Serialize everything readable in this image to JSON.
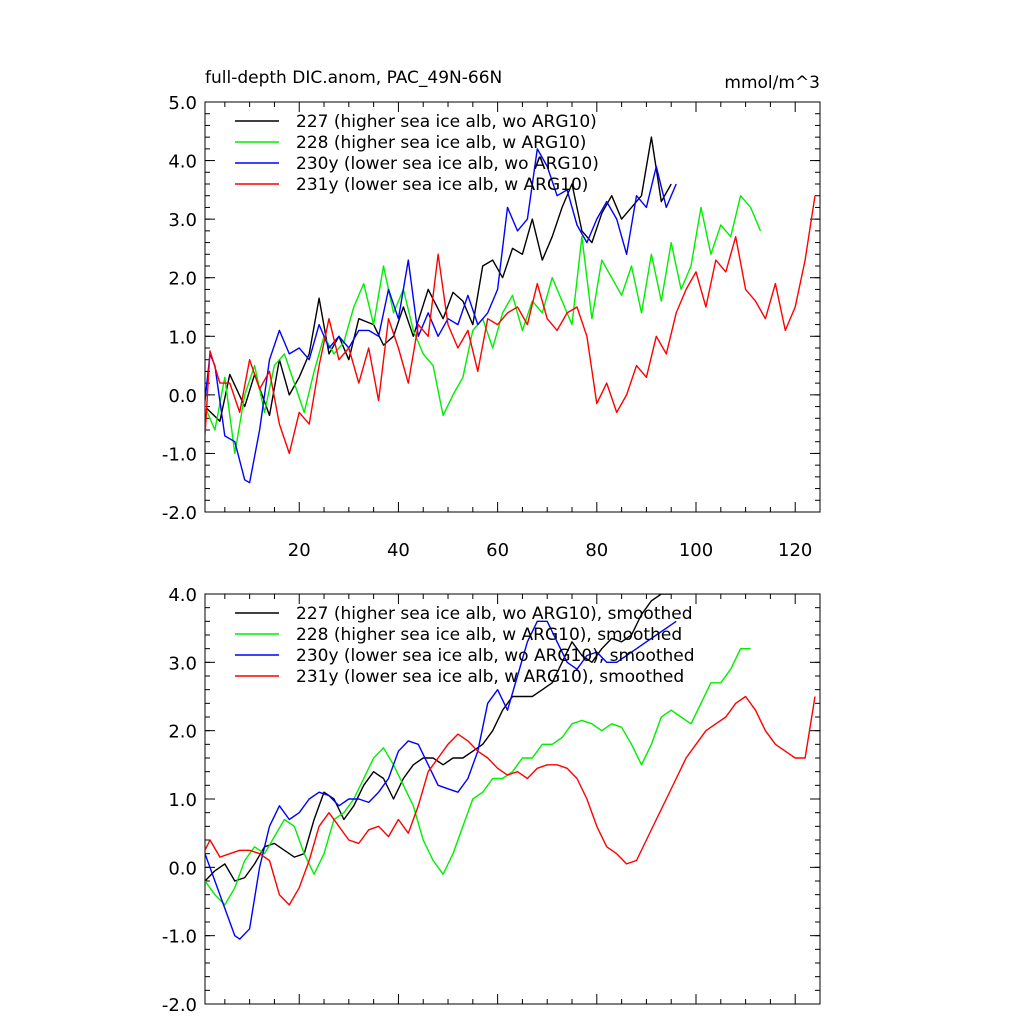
{
  "chart_data": [
    {
      "type": "line",
      "title": "full-depth DIC.anom, PAC_49N-66N",
      "units": "mmol/m^3",
      "xlabel": "",
      "ylabel": "",
      "xlim": [
        1,
        125
      ],
      "ylim": [
        -2.0,
        5.0
      ],
      "xticks": [
        20,
        40,
        60,
        80,
        100,
        120
      ],
      "xtick_labels": [
        "20",
        "40",
        "60",
        "80",
        "100",
        "120"
      ],
      "yticks": [
        -2.0,
        -1.0,
        0.0,
        1.0,
        2.0,
        3.0,
        4.0,
        5.0
      ],
      "ytick_labels": [
        "-2.0",
        "-1.0",
        "0.0",
        "1.0",
        "2.0",
        "3.0",
        "4.0",
        "5.0"
      ],
      "legend_position": "top-left",
      "series": [
        {
          "name": "227 (higher sea ice alb, wo ARG10)",
          "color": "#000000",
          "x": [
            1,
            4,
            6,
            9,
            11,
            14,
            16,
            18,
            20,
            22,
            24,
            26,
            28,
            30,
            32,
            35,
            37,
            39,
            41,
            43,
            46,
            49,
            51,
            53,
            55,
            57,
            59,
            61,
            63,
            65,
            67,
            69,
            71,
            73,
            75,
            77,
            79,
            81,
            83,
            85,
            87,
            89,
            91,
            93,
            95
          ],
          "y": [
            -0.2,
            -0.45,
            0.35,
            -0.2,
            0.35,
            -0.35,
            0.6,
            0.0,
            0.3,
            0.7,
            1.65,
            0.7,
            1.0,
            0.6,
            1.3,
            1.2,
            0.85,
            1.0,
            1.5,
            1.0,
            1.8,
            1.3,
            1.75,
            1.6,
            1.2,
            2.2,
            2.3,
            2.0,
            2.5,
            2.4,
            3.0,
            2.3,
            2.7,
            3.2,
            3.6,
            2.8,
            2.6,
            3.1,
            3.4,
            3.0,
            3.2,
            3.4,
            4.4,
            3.3,
            3.6
          ]
        },
        {
          "name": "228 (higher sea ice alb, w ARG10)",
          "color": "#00ee00",
          "x": [
            1,
            3,
            5,
            7,
            9,
            11,
            13,
            15,
            17,
            19,
            21,
            23,
            25,
            27,
            29,
            31,
            33,
            35,
            37,
            39,
            41,
            43,
            45,
            47,
            49,
            51,
            53,
            55,
            57,
            59,
            61,
            63,
            65,
            67,
            69,
            71,
            73,
            75,
            77,
            79,
            81,
            83,
            85,
            87,
            89,
            91,
            93,
            95,
            97,
            99,
            101,
            103,
            105,
            107,
            109,
            111,
            113
          ],
          "y": [
            -0.2,
            -0.6,
            0.3,
            -1.0,
            0.0,
            0.5,
            -0.3,
            0.5,
            0.7,
            0.2,
            -0.3,
            0.4,
            1.0,
            0.7,
            0.9,
            1.5,
            1.9,
            1.2,
            2.2,
            1.4,
            1.8,
            1.1,
            0.7,
            0.5,
            -0.35,
            0.0,
            0.3,
            1.1,
            1.3,
            0.8,
            1.4,
            1.7,
            1.1,
            1.6,
            1.4,
            2.0,
            1.6,
            1.2,
            2.7,
            1.3,
            2.3,
            2.0,
            1.7,
            2.2,
            1.4,
            2.4,
            1.6,
            2.6,
            1.8,
            2.2,
            3.2,
            2.4,
            2.9,
            2.7,
            3.4,
            3.2,
            2.8
          ]
        },
        {
          "name": "230y (lower sea ice alb, wo ARG10)",
          "color": "#0000ff",
          "x": [
            1,
            2,
            3,
            5,
            7,
            9,
            10,
            12,
            14,
            16,
            18,
            20,
            22,
            24,
            26,
            28,
            30,
            32,
            34,
            36,
            38,
            40,
            42,
            44,
            46,
            48,
            50,
            52,
            54,
            56,
            58,
            60,
            62,
            64,
            66,
            68,
            70,
            72,
            74,
            76,
            78,
            80,
            82,
            84,
            86,
            88,
            90,
            92,
            94,
            96
          ],
          "y": [
            -0.1,
            0.7,
            0.5,
            -0.7,
            -0.8,
            -1.45,
            -1.5,
            -0.6,
            0.6,
            1.1,
            0.7,
            0.8,
            0.6,
            1.2,
            0.8,
            1.0,
            0.8,
            1.1,
            1.1,
            1.0,
            1.8,
            1.3,
            2.3,
            1.0,
            1.4,
            1.0,
            1.3,
            1.2,
            1.7,
            1.2,
            1.4,
            1.8,
            3.2,
            2.8,
            3.0,
            4.2,
            3.9,
            3.4,
            3.5,
            2.9,
            2.6,
            3.0,
            3.3,
            3.0,
            2.4,
            3.4,
            3.2,
            3.9,
            3.2,
            3.6
          ]
        },
        {
          "name": "231y (lower sea ice alb, w ARG10)",
          "color": "#ff0000",
          "x": [
            1,
            2,
            4,
            6,
            8,
            10,
            12,
            14,
            16,
            18,
            20,
            22,
            24,
            26,
            28,
            30,
            32,
            34,
            36,
            38,
            40,
            42,
            44,
            46,
            48,
            50,
            52,
            54,
            56,
            58,
            60,
            62,
            64,
            66,
            68,
            70,
            72,
            74,
            76,
            78,
            80,
            82,
            84,
            86,
            88,
            90,
            92,
            94,
            96,
            98,
            100,
            102,
            104,
            106,
            108,
            110,
            112,
            114,
            116,
            118,
            120,
            122,
            124
          ],
          "y": [
            -0.7,
            0.75,
            0.2,
            0.2,
            -0.3,
            0.6,
            0.1,
            0.4,
            -0.5,
            -1.0,
            -0.3,
            -0.5,
            0.5,
            1.3,
            0.6,
            0.8,
            0.2,
            0.8,
            -0.1,
            1.3,
            0.8,
            0.2,
            1.2,
            1.0,
            2.4,
            1.2,
            0.8,
            1.1,
            0.4,
            1.3,
            1.2,
            1.4,
            1.5,
            1.2,
            1.9,
            1.3,
            1.1,
            1.4,
            1.5,
            1.0,
            -0.15,
            0.2,
            -0.3,
            0.0,
            0.5,
            0.3,
            1.0,
            0.7,
            1.4,
            1.8,
            2.1,
            1.5,
            2.3,
            2.1,
            2.7,
            1.8,
            1.6,
            1.3,
            1.9,
            1.1,
            1.5,
            2.3,
            3.4
          ]
        }
      ]
    },
    {
      "type": "line",
      "title": "",
      "xlabel": "",
      "ylabel": "",
      "xlim": [
        1,
        125
      ],
      "ylim": [
        -2.0,
        4.0
      ],
      "xticks": [
        20,
        40,
        60,
        80,
        100,
        120
      ],
      "xtick_labels": [],
      "yticks": [
        -2.0,
        -1.0,
        0.0,
        1.0,
        2.0,
        3.0,
        4.0
      ],
      "ytick_labels": [
        "-2.0",
        "-1.0",
        "0.0",
        "1.0",
        "2.0",
        "3.0",
        "4.0"
      ],
      "legend_position": "top-left",
      "series": [
        {
          "name": "227 (higher sea ice alb, wo ARG10), smoothed",
          "color": "#000000",
          "x": [
            1,
            3,
            5,
            7,
            9,
            11,
            13,
            15,
            17,
            19,
            21,
            23,
            25,
            27,
            29,
            31,
            33,
            35,
            37,
            39,
            41,
            43,
            45,
            47,
            49,
            51,
            53,
            55,
            57,
            59,
            61,
            63,
            65,
            67,
            69,
            71,
            73,
            75,
            77,
            79,
            81,
            83,
            85,
            87,
            89,
            91,
            93,
            95
          ],
          "y": [
            -0.2,
            -0.05,
            0.05,
            -0.2,
            -0.15,
            0.05,
            0.3,
            0.35,
            0.25,
            0.15,
            0.2,
            0.7,
            1.1,
            1.0,
            0.7,
            0.9,
            1.2,
            1.4,
            1.3,
            1.0,
            1.3,
            1.5,
            1.6,
            1.6,
            1.5,
            1.6,
            1.6,
            1.7,
            1.8,
            2.0,
            2.3,
            2.5,
            2.5,
            2.5,
            2.6,
            2.7,
            3.0,
            3.3,
            3.1,
            3.0,
            3.2,
            3.35,
            3.3,
            3.4,
            3.7,
            3.9,
            4.0,
            4.0
          ]
        },
        {
          "name": "228 (higher sea ice alb, w ARG10), smoothed",
          "color": "#00ee00",
          "x": [
            1,
            3,
            5,
            7,
            9,
            11,
            13,
            15,
            17,
            19,
            21,
            23,
            25,
            27,
            29,
            31,
            33,
            35,
            37,
            39,
            41,
            43,
            45,
            47,
            49,
            51,
            53,
            55,
            57,
            59,
            61,
            63,
            65,
            67,
            69,
            71,
            73,
            75,
            77,
            79,
            81,
            83,
            85,
            87,
            89,
            91,
            93,
            95,
            97,
            99,
            101,
            103,
            105,
            107,
            109,
            111
          ],
          "y": [
            -0.2,
            -0.4,
            -0.55,
            -0.3,
            0.1,
            0.3,
            0.2,
            0.45,
            0.7,
            0.6,
            0.2,
            -0.1,
            0.2,
            0.7,
            0.8,
            1.0,
            1.3,
            1.6,
            1.75,
            1.5,
            1.2,
            0.9,
            0.4,
            0.1,
            -0.1,
            0.2,
            0.6,
            1.0,
            1.1,
            1.3,
            1.3,
            1.4,
            1.6,
            1.6,
            1.8,
            1.8,
            1.9,
            2.1,
            2.15,
            2.1,
            2.0,
            2.1,
            2.05,
            1.8,
            1.5,
            1.8,
            2.2,
            2.3,
            2.2,
            2.1,
            2.4,
            2.7,
            2.7,
            2.9,
            3.2,
            3.2
          ]
        },
        {
          "name": "230y (lower sea ice alb, wo ARG10), smoothed",
          "color": "#0000ff",
          "x": [
            1,
            3,
            5,
            7,
            8,
            10,
            12,
            14,
            16,
            18,
            20,
            22,
            24,
            26,
            28,
            30,
            32,
            34,
            36,
            38,
            40,
            42,
            44,
            46,
            48,
            50,
            52,
            54,
            56,
            58,
            60,
            62,
            64,
            66,
            68,
            70,
            72,
            74,
            76,
            78,
            80,
            82,
            84,
            86,
            88,
            90,
            92,
            94,
            96
          ],
          "y": [
            0.2,
            -0.2,
            -0.6,
            -1.0,
            -1.05,
            -0.9,
            0.0,
            0.6,
            0.9,
            0.7,
            0.8,
            1.0,
            1.1,
            1.05,
            0.9,
            1.0,
            1.0,
            0.95,
            1.1,
            1.3,
            1.7,
            1.85,
            1.8,
            1.5,
            1.2,
            1.15,
            1.1,
            1.3,
            1.7,
            2.4,
            2.6,
            2.3,
            2.8,
            3.3,
            3.6,
            3.6,
            3.3,
            3.0,
            2.9,
            3.1,
            3.15,
            3.0,
            3.0,
            3.1,
            3.2,
            3.3,
            3.4,
            3.5,
            3.6
          ]
        },
        {
          "name": "231y (lower sea ice alb, w ARG10), smoothed",
          "color": "#ff0000",
          "x": [
            1,
            2,
            4,
            6,
            8,
            10,
            12,
            14,
            16,
            18,
            20,
            22,
            24,
            26,
            28,
            30,
            32,
            34,
            36,
            38,
            40,
            42,
            44,
            46,
            48,
            50,
            52,
            54,
            56,
            58,
            60,
            62,
            64,
            66,
            68,
            70,
            72,
            74,
            76,
            78,
            80,
            82,
            84,
            86,
            88,
            90,
            92,
            94,
            96,
            98,
            100,
            102,
            104,
            106,
            108,
            110,
            112,
            114,
            116,
            118,
            120,
            122,
            124
          ],
          "y": [
            0.25,
            0.4,
            0.15,
            0.2,
            0.25,
            0.25,
            0.2,
            0.1,
            -0.4,
            -0.55,
            -0.3,
            0.1,
            0.6,
            0.8,
            0.6,
            0.4,
            0.35,
            0.55,
            0.6,
            0.45,
            0.7,
            0.5,
            0.9,
            1.4,
            1.6,
            1.8,
            1.95,
            1.85,
            1.7,
            1.6,
            1.45,
            1.35,
            1.4,
            1.3,
            1.45,
            1.5,
            1.5,
            1.45,
            1.3,
            1.0,
            0.6,
            0.3,
            0.2,
            0.05,
            0.1,
            0.4,
            0.7,
            1.0,
            1.3,
            1.6,
            1.8,
            2.0,
            2.1,
            2.2,
            2.4,
            2.5,
            2.3,
            2.0,
            1.8,
            1.7,
            1.6,
            1.6,
            2.5
          ]
        }
      ]
    }
  ]
}
